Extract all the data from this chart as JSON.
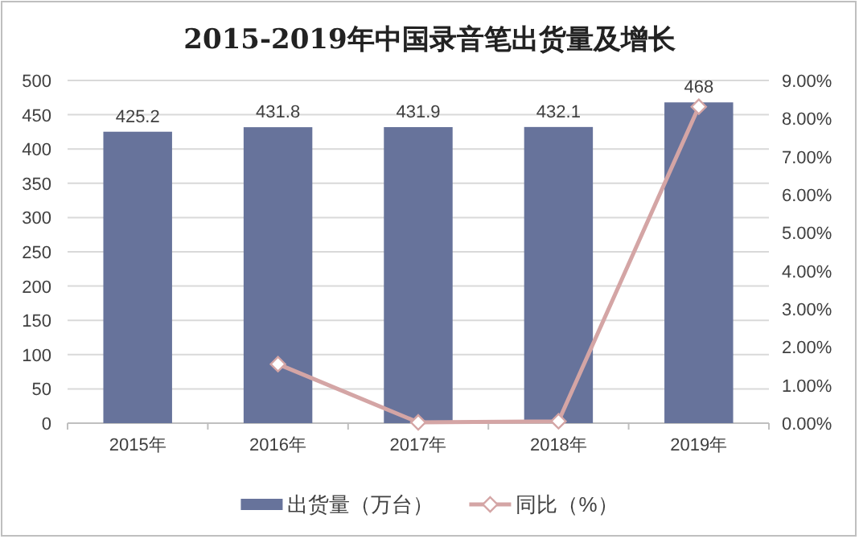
{
  "chart_data": {
    "type": "bar",
    "title": "2015-2019年中国录音笔出货量及增长",
    "categories": [
      "2015年",
      "2016年",
      "2017年",
      "2018年",
      "2019年"
    ],
    "series": [
      {
        "name": "出货量（万台）",
        "color": "#67739b",
        "values": [
          425.2,
          431.8,
          431.9,
          432.1,
          468
        ],
        "value_labels": [
          "425.2",
          "431.8",
          "431.9",
          "432.1",
          "468"
        ]
      },
      {
        "name": "同比（%）",
        "type": "line",
        "axis": "y2",
        "color": "#d4a5a5",
        "marker": "diamond",
        "values": [
          null,
          1.55,
          0.02,
          0.05,
          8.31
        ]
      }
    ],
    "ylim": [
      0,
      500
    ],
    "yticks": [
      0,
      50,
      100,
      150,
      200,
      250,
      300,
      350,
      400,
      450,
      500
    ],
    "y2lim": [
      0,
      9
    ],
    "y2ticks": [
      {
        "value": 0,
        "label": "0.00%"
      },
      {
        "value": 1,
        "label": "1.00%"
      },
      {
        "value": 2,
        "label": "2.00%"
      },
      {
        "value": 3,
        "label": "3.00%"
      },
      {
        "value": 4,
        "label": "4.00%"
      },
      {
        "value": 5,
        "label": "5.00%"
      },
      {
        "value": 6,
        "label": "6.00%"
      },
      {
        "value": 7,
        "label": "7.00%"
      },
      {
        "value": 8,
        "label": "8.00%"
      },
      {
        "value": 9,
        "label": "9.00%"
      }
    ],
    "grid": "y",
    "legend": "bottom"
  }
}
